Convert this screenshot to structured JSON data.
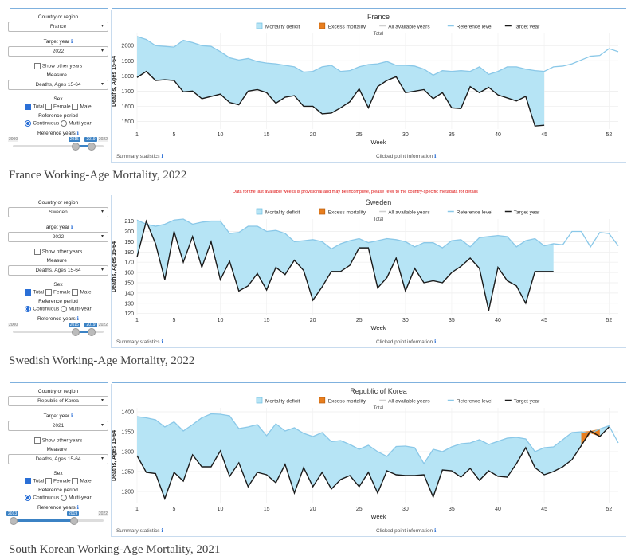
{
  "shared": {
    "country_label": "Country or region",
    "target_year_label": "Target year",
    "show_other_years": "Show other years",
    "measure_label": "Measure",
    "sex_label": "Sex",
    "sex_options": [
      "Total",
      "Female",
      "Male"
    ],
    "ref_period_label": "Reference period",
    "ref_options": [
      "Continuous",
      "Multi-year"
    ],
    "ref_years_label": "Reference years",
    "summary_statistics": "Summary statistics",
    "clicked_point_info": "Clicked point information",
    "legend": [
      "Mortality deficit",
      "Excess mortality",
      "All available years",
      "Reference level",
      "Target year"
    ],
    "subtitle": "Total",
    "xlabel": "Week",
    "ylabel": "Deaths, Ages 15-64",
    "colors": {
      "deficit": "#b6e4f5",
      "excess": "#e87e1e",
      "reference": "#8ac8e8",
      "target": "#1a1a1a",
      "accent": "#2a6fd6"
    }
  },
  "panels": [
    {
      "caption": "France Working-Age Mortality, 2022",
      "country": "France",
      "target_year": "2022",
      "measure": "Deaths, Ages 15-64",
      "slider": {
        "min": "2000",
        "max": "2022",
        "from": "2015",
        "to": "2019"
      },
      "warning": "",
      "chart_data": {
        "type": "line",
        "title": "France",
        "subtitle": "Total",
        "xlabel": "Week",
        "ylabel": "Deaths, Ages 15-64",
        "ylim": [
          1450,
          2080
        ],
        "yticks": [
          1500,
          1600,
          1700,
          1800,
          1900,
          2000
        ],
        "xticks": [
          1,
          5,
          10,
          15,
          20,
          25,
          30,
          35,
          40,
          45,
          52
        ],
        "xlim": [
          1,
          53
        ],
        "series": [
          {
            "name": "Reference level",
            "x": [
              1,
              2,
              3,
              4,
              5,
              6,
              7,
              8,
              9,
              10,
              11,
              12,
              13,
              14,
              15,
              16,
              17,
              18,
              19,
              20,
              21,
              22,
              23,
              24,
              25,
              26,
              27,
              28,
              29,
              30,
              31,
              32,
              33,
              34,
              35,
              36,
              37,
              38,
              39,
              40,
              41,
              42,
              43,
              44,
              45,
              46,
              47,
              48,
              49,
              50,
              51,
              52,
              53
            ],
            "values": [
              2060,
              2040,
              2000,
              1995,
              1990,
              2035,
              2020,
              2000,
              1995,
              1960,
              1920,
              1905,
              1915,
              1895,
              1885,
              1880,
              1870,
              1860,
              1825,
              1830,
              1860,
              1870,
              1830,
              1835,
              1860,
              1875,
              1880,
              1895,
              1870,
              1870,
              1865,
              1845,
              1805,
              1835,
              1830,
              1835,
              1830,
              1860,
              1810,
              1830,
              1860,
              1860,
              1845,
              1835,
              1830,
              1860,
              1865,
              1880,
              1905,
              1930,
              1935,
              1980,
              1960
            ]
          },
          {
            "name": "Target year",
            "x": [
              1,
              2,
              3,
              4,
              5,
              6,
              7,
              8,
              9,
              10,
              11,
              12,
              13,
              14,
              15,
              16,
              17,
              18,
              19,
              20,
              21,
              22,
              23,
              24,
              25,
              26,
              27,
              28,
              29,
              30,
              31,
              32,
              33,
              34,
              35,
              36,
              37,
              38,
              39,
              40,
              41,
              42,
              43,
              44,
              45
            ],
            "values": [
              1790,
              1830,
              1770,
              1775,
              1770,
              1695,
              1700,
              1650,
              1665,
              1680,
              1625,
              1610,
              1700,
              1710,
              1690,
              1620,
              1660,
              1670,
              1600,
              1600,
              1550,
              1555,
              1590,
              1630,
              1715,
              1590,
              1730,
              1770,
              1795,
              1690,
              1700,
              1710,
              1650,
              1690,
              1590,
              1585,
              1730,
              1690,
              1725,
              1675,
              1655,
              1635,
              1665,
              1470,
              1475
            ]
          }
        ]
      }
    },
    {
      "caption": "Swedish Working-Age Mortality, 2022",
      "country": "Sweden",
      "target_year": "2022",
      "measure": "Deaths, Ages 15-64",
      "slider": {
        "min": "2000",
        "max": "2022",
        "from": "2015",
        "to": "2019"
      },
      "warning": "Data for the last available weeks is provisional and may be incomplete, please refer to the country-specific metadata for details",
      "chart_data": {
        "type": "line",
        "title": "Sweden",
        "subtitle": "Total",
        "xlabel": "Week",
        "ylabel": "Deaths, Ages 15-64",
        "ylim": [
          119,
          212
        ],
        "yticks": [
          120,
          130,
          140,
          150,
          160,
          170,
          180,
          190,
          200,
          210
        ],
        "xticks": [
          1,
          5,
          10,
          15,
          20,
          25,
          30,
          35,
          40,
          45,
          52
        ],
        "xlim": [
          1,
          53
        ],
        "series": [
          {
            "name": "Reference level",
            "x": [
              1,
              2,
              3,
              4,
              5,
              6,
              7,
              8,
              9,
              10,
              11,
              12,
              13,
              14,
              15,
              16,
              17,
              18,
              19,
              20,
              21,
              22,
              23,
              24,
              25,
              26,
              27,
              28,
              29,
              30,
              31,
              32,
              33,
              34,
              35,
              36,
              37,
              38,
              39,
              40,
              41,
              42,
              43,
              44,
              45,
              46,
              47,
              48,
              49,
              50,
              51,
              52,
              53
            ],
            "values": [
              211,
              207,
              205,
              207,
              211,
              212,
              207,
              209,
              210,
              210,
              198,
              199,
              205,
              205,
              200,
              201,
              198,
              190,
              191,
              192,
              190,
              183,
              188,
              191,
              193,
              189,
              191,
              193,
              192,
              190,
              185,
              189,
              189,
              184,
              191,
              192,
              185,
              194,
              195,
              196,
              195,
              185,
              191,
              193,
              186,
              188,
              187,
              200,
              200,
              185,
              199,
              198,
              186
            ]
          },
          {
            "name": "Target year",
            "x": [
              1,
              2,
              3,
              4,
              5,
              6,
              7,
              8,
              9,
              10,
              11,
              12,
              13,
              14,
              15,
              16,
              17,
              18,
              19,
              20,
              21,
              22,
              23,
              24,
              25,
              26,
              27,
              28,
              29,
              30,
              31,
              32,
              33,
              34,
              35,
              36,
              37,
              38,
              39,
              40,
              41,
              42,
              43,
              44,
              45,
              46
            ],
            "values": [
              175,
              210,
              188,
              153,
              200,
              170,
              195,
              165,
              190,
              153,
              171,
              142,
              147,
              159,
              143,
              165,
              158,
              172,
              162,
              133,
              146,
              161,
              161,
              167,
              184,
              184,
              145,
              155,
              174,
              142,
              164,
              150,
              152,
              150,
              160,
              166,
              174,
              164,
              123,
              165,
              152,
              147,
              130,
              161,
              161,
              161
            ]
          }
        ]
      }
    },
    {
      "caption": "South Korean Working-Age Mortality, 2021",
      "country": "Republic of Korea",
      "target_year": "2021",
      "measure": "Deaths, Ages 15-64",
      "slider": {
        "min": "2013",
        "max": "2022",
        "from": "2013",
        "to": "2019"
      },
      "warning": "",
      "chart_data": {
        "type": "line",
        "title": "Republic of Korea",
        "subtitle": "Total",
        "xlabel": "Week",
        "ylabel": "Deaths, Ages 15-64",
        "ylim": [
          1170,
          1410
        ],
        "yticks": [
          1200,
          1250,
          1300,
          1350,
          1400
        ],
        "xticks": [
          1,
          5,
          10,
          15,
          20,
          25,
          30,
          35,
          40,
          45,
          52
        ],
        "xlim": [
          1,
          53
        ],
        "series": [
          {
            "name": "Reference level",
            "x": [
              1,
              2,
              3,
              4,
              5,
              6,
              7,
              8,
              9,
              10,
              11,
              12,
              13,
              14,
              15,
              16,
              17,
              18,
              19,
              20,
              21,
              22,
              23,
              24,
              25,
              26,
              27,
              28,
              29,
              30,
              31,
              32,
              33,
              34,
              35,
              36,
              37,
              38,
              39,
              40,
              41,
              42,
              43,
              44,
              45,
              46,
              47,
              48,
              49,
              50,
              51,
              52,
              53
            ],
            "values": [
              1388,
              1385,
              1380,
              1362,
              1375,
              1352,
              1368,
              1385,
              1395,
              1394,
              1390,
              1358,
              1362,
              1368,
              1340,
              1370,
              1352,
              1360,
              1346,
              1338,
              1348,
              1325,
              1328,
              1318,
              1306,
              1316,
              1300,
              1288,
              1313,
              1314,
              1310,
              1270,
              1306,
              1300,
              1312,
              1320,
              1322,
              1330,
              1318,
              1326,
              1334,
              1336,
              1332,
              1300,
              1310,
              1312,
              1330,
              1348,
              1350,
              1346,
              1357,
              1365,
              1322
            ]
          },
          {
            "name": "Target year",
            "x": [
              1,
              2,
              3,
              4,
              5,
              6,
              7,
              8,
              9,
              10,
              11,
              12,
              13,
              14,
              15,
              16,
              17,
              18,
              19,
              20,
              21,
              22,
              23,
              24,
              25,
              26,
              27,
              28,
              29,
              30,
              31,
              32,
              33,
              34,
              35,
              36,
              37,
              38,
              39,
              40,
              41,
              42,
              43,
              44,
              45,
              46,
              47,
              48,
              49,
              50,
              51,
              52
            ],
            "values": [
              1290,
              1248,
              1245,
              1182,
              1248,
              1226,
              1292,
              1262,
              1262,
              1302,
              1238,
              1272,
              1212,
              1248,
              1242,
              1222,
              1268,
              1196,
              1260,
              1212,
              1248,
              1206,
              1230,
              1240,
              1212,
              1248,
              1196,
              1252,
              1242,
              1240,
              1240,
              1242,
              1186,
              1254,
              1252,
              1236,
              1258,
              1228,
              1252,
              1238,
              1236,
              1270,
              1310,
              1260,
              1242,
              1250,
              1262,
              1280,
              1315,
              1352,
              1338,
              1362
            ]
          }
        ],
        "excess_segments": [
          [
            49,
            51
          ]
        ]
      }
    }
  ]
}
